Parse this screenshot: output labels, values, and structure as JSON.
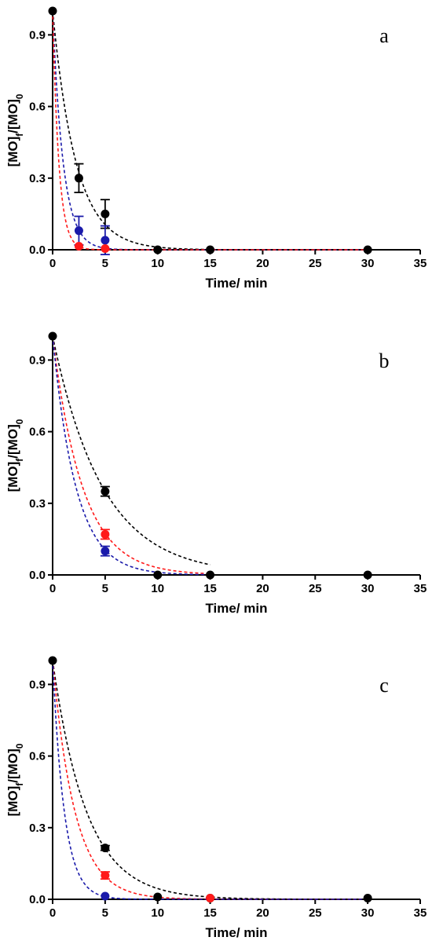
{
  "chart_data": [
    {
      "type": "scatter",
      "panel_label": "a",
      "xlabel": "Time/ min",
      "ylabel": "[MO]f/[MO]0",
      "xlim": [
        0,
        35
      ],
      "ylim": [
        0,
        1.0
      ],
      "xticks": [
        0,
        5,
        10,
        15,
        20,
        25,
        30,
        35
      ],
      "yticks": [
        0.0,
        0.3,
        0.6,
        0.9
      ],
      "grid": false,
      "series": [
        {
          "color": "#000000",
          "x": [
            0,
            2.5,
            5,
            10,
            15,
            30
          ],
          "y": [
            1.0,
            0.3,
            0.15,
            0.0,
            0.0,
            0.0
          ],
          "err": [
            0,
            0.06,
            0.06,
            0,
            0,
            0
          ],
          "fit_k": 0.45
        },
        {
          "color": "#1a1aaa",
          "x": [
            2.5,
            5
          ],
          "y": [
            0.08,
            0.04
          ],
          "err": [
            0.06,
            0.06
          ],
          "fit_k": 1.0
        },
        {
          "color": "#ff1a1a",
          "x": [
            2.5,
            5
          ],
          "y": [
            0.015,
            0.005
          ],
          "err": [
            0,
            0
          ],
          "fit_k": 1.7
        }
      ]
    },
    {
      "type": "scatter",
      "panel_label": "b",
      "xlabel": "Time/ min",
      "ylabel": "[MO]f/[MO]0",
      "xlim": [
        0,
        35
      ],
      "ylim": [
        0,
        1.0
      ],
      "xticks": [
        0,
        5,
        10,
        15,
        20,
        25,
        30,
        35
      ],
      "yticks": [
        0.0,
        0.3,
        0.6,
        0.9
      ],
      "grid": false,
      "series": [
        {
          "color": "#000000",
          "x": [
            0,
            5,
            10,
            15,
            30
          ],
          "y": [
            1.0,
            0.35,
            0.0,
            0.0,
            0.0
          ],
          "err": [
            0,
            0.02,
            0,
            0,
            0
          ],
          "fit_k": 0.21,
          "fit_end": 15
        },
        {
          "color": "#ff1a1a",
          "x": [
            5
          ],
          "y": [
            0.17
          ],
          "err": [
            0.02
          ],
          "fit_k": 0.35,
          "fit_end": 15
        },
        {
          "color": "#1a1aaa",
          "x": [
            5
          ],
          "y": [
            0.1
          ],
          "err": [
            0.02
          ],
          "fit_k": 0.45,
          "fit_end": 15
        }
      ]
    },
    {
      "type": "scatter",
      "panel_label": "c",
      "xlabel": "Time/ min",
      "ylabel": "[MO]f/[MO]0",
      "xlim": [
        0,
        35
      ],
      "ylim": [
        0,
        1.0
      ],
      "xticks": [
        0,
        5,
        10,
        15,
        20,
        25,
        30,
        35
      ],
      "yticks": [
        0.0,
        0.3,
        0.6,
        0.9
      ],
      "grid": false,
      "series": [
        {
          "color": "#000000",
          "x": [
            0,
            5,
            10,
            15,
            30
          ],
          "y": [
            1.0,
            0.215,
            0.01,
            0.005,
            0.005
          ],
          "err": [
            0,
            0.01,
            0,
            0,
            0
          ],
          "fit_k": 0.31
        },
        {
          "color": "#ff1a1a",
          "x": [
            5,
            15
          ],
          "y": [
            0.1,
            0.005
          ],
          "err": [
            0.015,
            0
          ],
          "fit_k": 0.47
        },
        {
          "color": "#1a1aaa",
          "x": [
            5
          ],
          "y": [
            0.013
          ],
          "err": [
            0
          ],
          "fit_k": 0.9
        }
      ]
    }
  ]
}
